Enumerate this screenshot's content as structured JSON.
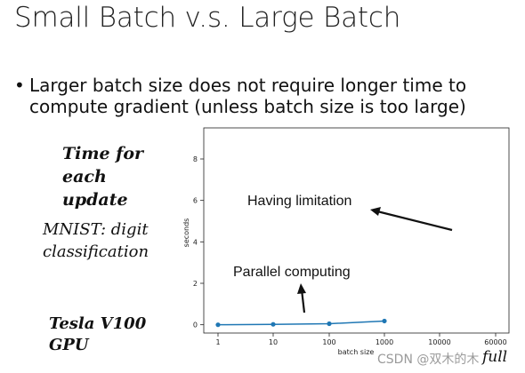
{
  "slide": {
    "title": "Small Batch v.s. Large Batch",
    "bullet_marker": "•",
    "bullet_text": "Larger batch size does not require longer time to compute gradient  (unless batch size is too large)",
    "time_label": [
      "Time for",
      "each",
      "update"
    ],
    "dataset_label": [
      "MNIST: digit",
      "classification"
    ],
    "hardware_label": [
      "Tesla V100",
      "GPU"
    ],
    "full_label": "full",
    "watermark": "CSDN @双木的木"
  },
  "colors": {
    "series": "#1f77b4",
    "arrow": "#111111"
  },
  "chart_data": {
    "type": "line",
    "xlabel": "batch size",
    "ylabel": "seconds",
    "x": [
      1,
      10,
      100,
      1000
    ],
    "series": [
      {
        "values": [
          0.0,
          0.02,
          0.05,
          0.18
        ]
      }
    ],
    "x_ticks": [
      "1",
      "10",
      "100",
      "1000",
      "10000",
      "60000"
    ],
    "y_ticks": [
      0,
      2,
      4,
      6,
      8
    ],
    "ylim": [
      -0.4,
      9.5
    ],
    "grid": false,
    "annotations": [
      {
        "text": "Having limitation"
      },
      {
        "text": "Parallel computing"
      }
    ]
  }
}
